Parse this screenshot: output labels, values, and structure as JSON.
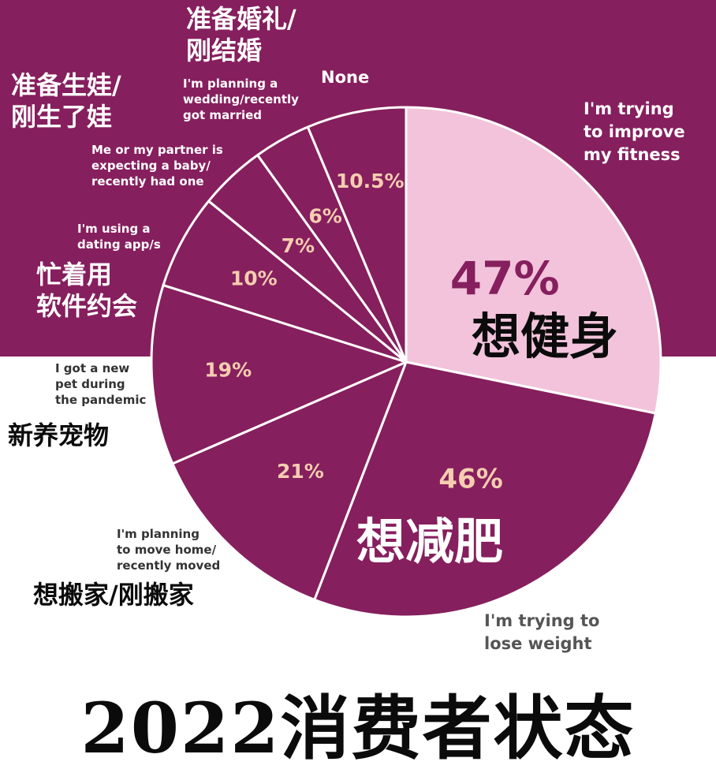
{
  "colors": {
    "brand_plum": "#861F5E",
    "pale_pink": "#F2C3DB",
    "peach_text": "#F6CDB0",
    "white": "#FFFFFF",
    "black": "#0B0B0B"
  },
  "title": "2022消费者状态",
  "chart_data": {
    "type": "pie",
    "slices": [
      {
        "id": "fitness",
        "value": 47,
        "label_pct": "47%",
        "en": "I'm trying\nto improve\nmy fitness",
        "zh": "想健身"
      },
      {
        "id": "weight",
        "value": 46,
        "label_pct": "46%",
        "en": "I'm trying to\nlose weight",
        "zh": "想减肥"
      },
      {
        "id": "move",
        "value": 21,
        "label_pct": "21%",
        "en": "I'm planning\nto move home/\nrecently moved",
        "zh": "想搬家/刚搬家"
      },
      {
        "id": "pet",
        "value": 19,
        "label_pct": "19%",
        "en": "I got a new\npet during\nthe pandemic",
        "zh": "新养宠物"
      },
      {
        "id": "dating",
        "value": 10,
        "label_pct": "10%",
        "en": "I'm using a\ndating app/s",
        "zh": "忙着用\n软件约会"
      },
      {
        "id": "baby",
        "value": 7,
        "label_pct": "7%",
        "en": "Me or my partner is\nexpecting a baby/\nrecently had one",
        "zh": "准备生娃/\n刚生了娃"
      },
      {
        "id": "wedding",
        "value": 6,
        "label_pct": "6%",
        "en": "I'm planning a\nwedding/recently\ngot married",
        "zh": "准备婚礼/\n刚结婚"
      },
      {
        "id": "none",
        "value": 10.5,
        "label_pct": "10.5%",
        "en": "None",
        "zh": ""
      }
    ]
  }
}
